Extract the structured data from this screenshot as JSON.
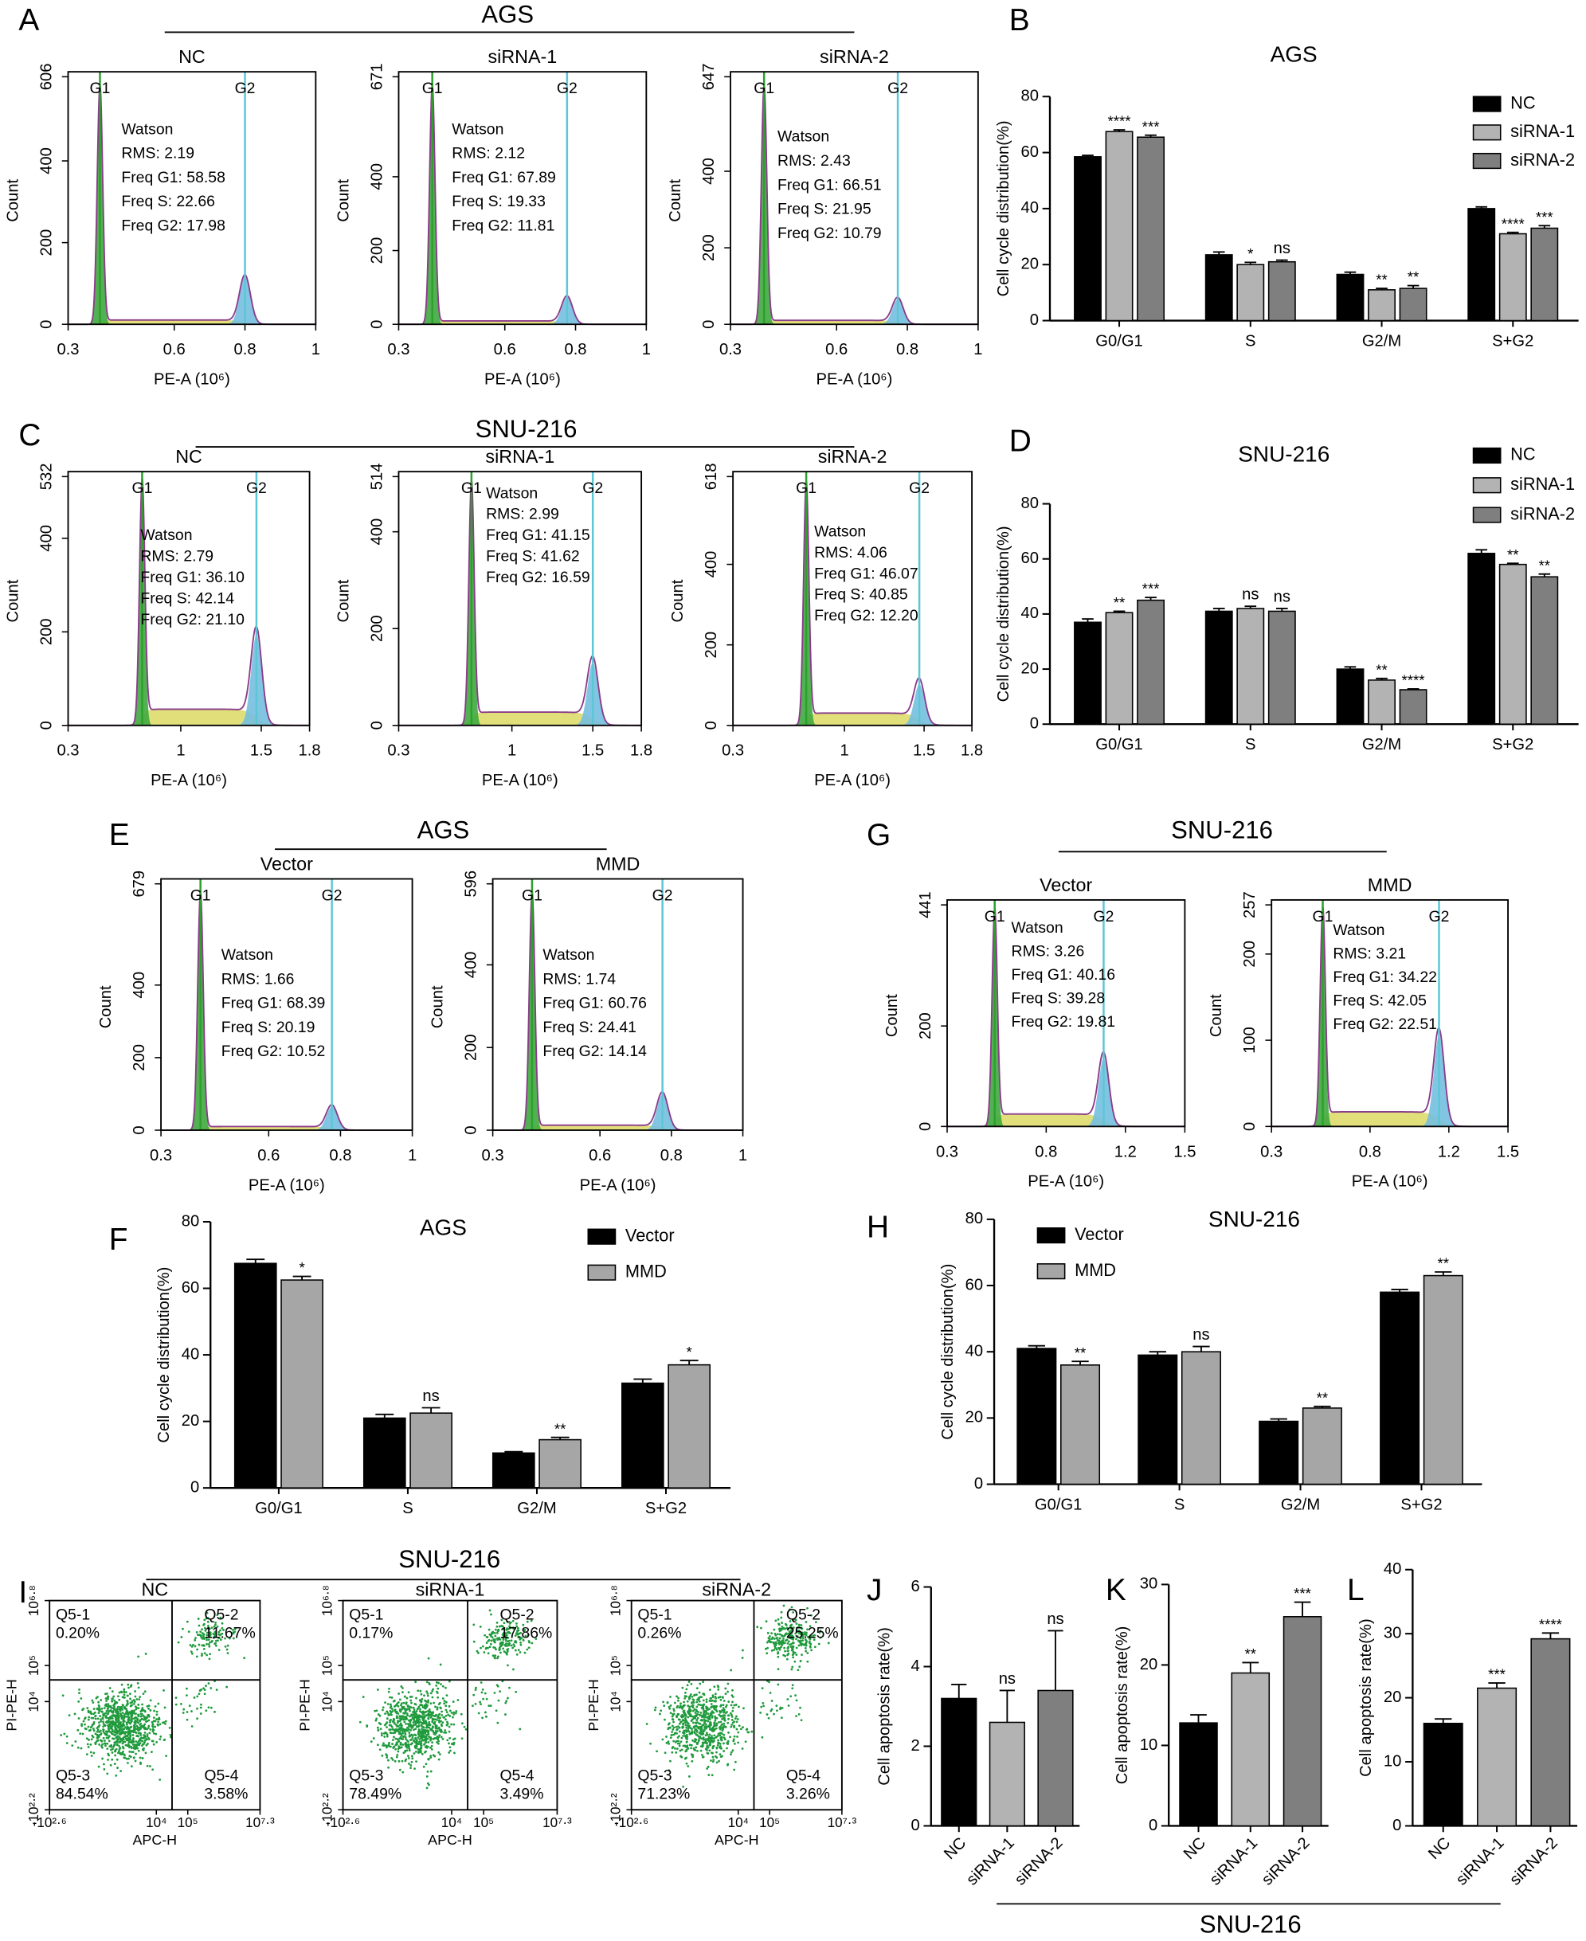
{
  "panel_letters": [
    "A",
    "B",
    "C",
    "D",
    "E",
    "F",
    "G",
    "H",
    "I",
    "J",
    "K",
    "L"
  ],
  "headings": [
    "AGS",
    "SNU-216",
    "AGS",
    "SNU-216",
    "SNU-216",
    "SNU-216"
  ],
  "chart_data": [
    {
      "type": "flow",
      "title": "NC",
      "xlabel": "PE-A (10⁶)",
      "ylabel": "Count",
      "xlim": [
        0.3,
        1
      ],
      "xticks": [
        0.3,
        0.6,
        0.8,
        1
      ],
      "ylim": [
        0,
        606
      ],
      "yticks": [
        0,
        200,
        400,
        606
      ],
      "peaks": [
        {
          "label": "G1",
          "x": 0.39
        },
        {
          "label": "G2",
          "x": 0.8
        }
      ],
      "stats": [
        "Watson",
        "RMS: 2.19",
        "Freq G1: 58.58",
        "Freq S: 22.66",
        "Freq G2: 17.98"
      ]
    },
    {
      "type": "flow",
      "title": "siRNA-1",
      "xlabel": "PE-A (10⁶)",
      "ylabel": "Count",
      "xlim": [
        0.3,
        1
      ],
      "xticks": [
        0.3,
        0.6,
        0.8,
        1
      ],
      "ylim": [
        0,
        671
      ],
      "yticks": [
        0,
        200,
        400,
        671
      ],
      "peaks": [
        {
          "label": "G1",
          "x": 0.395
        },
        {
          "label": "G2",
          "x": 0.776
        }
      ],
      "stats": [
        "Watson",
        "RMS: 2.12",
        "Freq G1: 67.89",
        "Freq S: 19.33",
        "Freq G2: 11.81"
      ]
    },
    {
      "type": "flow",
      "title": "siRNA-2",
      "xlabel": "PE-A (10⁶)",
      "ylabel": "Count",
      "xlim": [
        0.3,
        1
      ],
      "xticks": [
        0.3,
        0.6,
        0.8,
        1
      ],
      "ylim": [
        0,
        647
      ],
      "yticks": [
        0,
        200,
        400,
        647
      ],
      "peaks": [
        {
          "label": "G1",
          "x": 0.395
        },
        {
          "label": "G2",
          "x": 0.773
        }
      ],
      "stats": [
        "Watson",
        "RMS: 2.43",
        "Freq G1: 66.51",
        "Freq S: 21.95",
        "Freq G2: 10.79"
      ]
    },
    {
      "type": "bar",
      "title": "AGS",
      "ylabel": "Cell cycle distribution(%)",
      "categories": [
        "G0/G1",
        "S",
        "G2/M",
        "S+G2"
      ],
      "ylim": [
        0,
        80
      ],
      "yticks": [
        0,
        20,
        40,
        60,
        80
      ],
      "legend": "upper right",
      "series": [
        {
          "name": "NC",
          "color": "#000000",
          "values": [
            58.5,
            23.5,
            16.5,
            40
          ],
          "errors": [
            0.5,
            1,
            0.8,
            0.6
          ]
        },
        {
          "name": "siRNA-1",
          "color": "#b3b3b3",
          "values": [
            67.5,
            20,
            11,
            31
          ],
          "errors": [
            0.6,
            0.8,
            0.5,
            0.5
          ],
          "stars": [
            "****",
            "*",
            "**",
            "****"
          ]
        },
        {
          "name": "siRNA-2",
          "color": "#7f7f7f",
          "values": [
            65.5,
            21,
            11.5,
            33
          ],
          "errors": [
            0.7,
            0.6,
            1,
            0.9
          ],
          "stars": [
            "***",
            "ns",
            "**",
            "***"
          ]
        }
      ]
    },
    {
      "type": "flow",
      "title": "NC",
      "xlabel": "PE-A (10⁶)",
      "ylabel": "Count",
      "xlim": [
        0.3,
        1.8
      ],
      "xticks": [
        0.3,
        1,
        1.5,
        1.8
      ],
      "ylim": [
        0,
        532
      ],
      "yticks": [
        0,
        200,
        400,
        532
      ],
      "peaks": [
        {
          "label": "G1",
          "x": 0.76
        },
        {
          "label": "G2",
          "x": 1.47
        }
      ],
      "stats": [
        "Watson",
        "RMS: 2.79",
        "Freq G1: 36.10",
        "Freq S: 42.14",
        "Freq G2: 21.10"
      ]
    },
    {
      "type": "flow",
      "title": "siRNA-1",
      "xlabel": "PE-A (10⁶)",
      "ylabel": "Count",
      "xlim": [
        0.3,
        1.8
      ],
      "xticks": [
        0.3,
        1,
        1.5,
        1.8
      ],
      "ylim": [
        0,
        514
      ],
      "yticks": [
        0,
        200,
        400,
        514
      ],
      "peaks": [
        {
          "label": "G1",
          "x": 0.75
        },
        {
          "label": "G2",
          "x": 1.5
        }
      ],
      "stats": [
        "Watson",
        "RMS: 2.99",
        "Freq G1: 41.15",
        "Freq S: 41.62",
        "Freq G2: 16.59"
      ]
    },
    {
      "type": "flow",
      "title": "siRNA-2",
      "xlabel": "PE-A (10⁶)",
      "ylabel": "Count",
      "xlim": [
        0.3,
        1.8
      ],
      "xticks": [
        0.3,
        1,
        1.5,
        1.8
      ],
      "ylim": [
        0,
        618
      ],
      "yticks": [
        0,
        200,
        400,
        618
      ],
      "peaks": [
        {
          "label": "G1",
          "x": 0.76
        },
        {
          "label": "G2",
          "x": 1.47
        }
      ],
      "stats": [
        "Watson",
        "RMS: 4.06",
        "Freq G1: 46.07",
        "Freq S: 40.85",
        "Freq G2: 12.20"
      ]
    },
    {
      "type": "bar",
      "title": "SNU-216",
      "ylabel": "Cell cycle distribution(%)",
      "categories": [
        "G0/G1",
        "S",
        "G2/M",
        "S+G2"
      ],
      "ylim": [
        0,
        80
      ],
      "yticks": [
        0,
        20,
        40,
        60,
        80
      ],
      "legend": "upper right",
      "series": [
        {
          "name": "NC",
          "color": "#000000",
          "values": [
            37,
            41,
            20,
            62
          ],
          "errors": [
            1.2,
            1,
            0.8,
            1.3
          ]
        },
        {
          "name": "siRNA-1",
          "color": "#b3b3b3",
          "values": [
            40.5,
            42,
            16,
            58
          ],
          "errors": [
            0.5,
            0.8,
            0.6,
            0.4
          ],
          "stars": [
            "**",
            "ns",
            "**",
            "**"
          ]
        },
        {
          "name": "siRNA-2",
          "color": "#7f7f7f",
          "values": [
            45,
            41,
            12.5,
            53.5
          ],
          "errors": [
            1,
            1,
            0.3,
            1
          ],
          "stars": [
            "***",
            "ns",
            "****",
            "**"
          ]
        }
      ]
    },
    {
      "type": "flow",
      "title": "Vector",
      "xlabel": "PE-A (10⁶)",
      "ylabel": "Count",
      "xlim": [
        0.3,
        1
      ],
      "xticks": [
        0.3,
        0.6,
        0.8,
        1
      ],
      "ylim": [
        0,
        679
      ],
      "yticks": [
        0,
        200,
        400,
        679
      ],
      "peaks": [
        {
          "label": "G1",
          "x": 0.41
        },
        {
          "label": "G2",
          "x": 0.776
        }
      ],
      "stats": [
        "Watson",
        "RMS: 1.66",
        "Freq G1: 68.39",
        "Freq S: 20.19",
        "Freq G2: 10.52"
      ]
    },
    {
      "type": "flow",
      "title": "MMD",
      "xlabel": "PE-A (10⁶)",
      "ylabel": "Count",
      "xlim": [
        0.3,
        1
      ],
      "xticks": [
        0.3,
        0.6,
        0.8,
        1
      ],
      "ylim": [
        0,
        596
      ],
      "yticks": [
        0,
        200,
        400,
        596
      ],
      "peaks": [
        {
          "label": "G1",
          "x": 0.41
        },
        {
          "label": "G2",
          "x": 0.775
        }
      ],
      "stats": [
        "Watson",
        "RMS: 1.74",
        "Freq G1: 60.76",
        "Freq S: 24.41",
        "Freq G2: 14.14"
      ]
    },
    {
      "type": "flow",
      "title": "Vector",
      "xlabel": "PE-A (10⁶)",
      "ylabel": "Count",
      "xlim": [
        0.3,
        1.5
      ],
      "xticks": [
        0.3,
        0.8,
        1.2,
        1.5
      ],
      "ylim": [
        0,
        441
      ],
      "yticks": [
        0,
        200,
        441
      ],
      "peaks": [
        {
          "label": "G1",
          "x": 0.54
        },
        {
          "label": "G2",
          "x": 1.09
        }
      ],
      "stats": [
        "Watson",
        "RMS: 3.26",
        "Freq G1: 40.16",
        "Freq S: 39.28",
        "Freq G2: 19.81"
      ]
    },
    {
      "type": "flow",
      "title": "MMD",
      "xlabel": "PE-A (10⁶)",
      "ylabel": "Count",
      "xlim": [
        0.3,
        1.5
      ],
      "xticks": [
        0.3,
        0.8,
        1.2,
        1.5
      ],
      "ylim": [
        0,
        257
      ],
      "yticks": [
        0,
        100,
        200,
        257
      ],
      "peaks": [
        {
          "label": "G1",
          "x": 0.56
        },
        {
          "label": "G2",
          "x": 1.15
        }
      ],
      "stats": [
        "Watson",
        "RMS: 3.21",
        "Freq G1: 34.22",
        "Freq S: 42.05",
        "Freq G2: 22.51"
      ]
    },
    {
      "type": "bar",
      "title": "AGS",
      "ylabel": "Cell cycle distribution(%)",
      "categories": [
        "G0/G1",
        "S",
        "G2/M",
        "S+G2"
      ],
      "ylim": [
        0,
        80
      ],
      "yticks": [
        0,
        20,
        40,
        60,
        80
      ],
      "legend": "upper center",
      "series": [
        {
          "name": "Vector",
          "color": "#000000",
          "values": [
            67.5,
            21,
            10.5,
            31.5
          ],
          "errors": [
            1.2,
            1.1,
            0.4,
            1.2
          ]
        },
        {
          "name": "MMD",
          "color": "#a6a6a6",
          "values": [
            62.5,
            22.5,
            14.5,
            37
          ],
          "errors": [
            1.1,
            1.6,
            0.7,
            1.3
          ],
          "stars": [
            "*",
            "ns",
            "**",
            "*"
          ]
        }
      ]
    },
    {
      "type": "bar",
      "title": "SNU-216",
      "ylabel": "Cell cycle distribution(%)",
      "categories": [
        "G0/G1",
        "S",
        "G2/M",
        "S+G2"
      ],
      "ylim": [
        0,
        80
      ],
      "yticks": [
        0,
        20,
        40,
        60,
        80
      ],
      "legend": "upper center",
      "series": [
        {
          "name": "Vector",
          "color": "#000000",
          "values": [
            41,
            39,
            19,
            58
          ],
          "errors": [
            0.8,
            1,
            0.7,
            0.8
          ]
        },
        {
          "name": "MMD",
          "color": "#a6a6a6",
          "values": [
            36,
            40,
            23,
            63
          ],
          "errors": [
            1.1,
            1.6,
            0.5,
            1.1
          ],
          "stars": [
            "**",
            "ns",
            "**",
            "**"
          ]
        }
      ]
    },
    {
      "type": "quadrant",
      "title": "NC",
      "xlabel": "APC-H",
      "ylabel": "PI-PE-H",
      "scale": "biexponential",
      "color": "#1f9a3c",
      "xlim": [
        -2.6,
        7.3
      ],
      "xticks": [
        {
          "value": -2.6,
          "label": "-10²·⁶"
        },
        {
          "value": 4,
          "label": "10⁴"
        },
        {
          "value": 5,
          "label": "10⁵"
        },
        {
          "value": 7.3,
          "label": "10⁷·³"
        }
      ],
      "ylim": [
        -2.2,
        6.8
      ],
      "yticks": [
        {
          "value": -2.2,
          "label": "-10²·²"
        },
        {
          "value": 4,
          "label": "10⁴"
        },
        {
          "value": 5,
          "label": "10⁵"
        },
        {
          "value": 6.8,
          "label": "10⁶·⁸"
        }
      ],
      "xgate": 4.5,
      "ygate": 4.6,
      "quadrants": [
        "Q5-1",
        "Q5-2",
        "Q5-3",
        "Q5-4"
      ],
      "values": [
        0.2,
        11.67,
        84.54,
        3.58
      ],
      "value_labels": [
        "0.20%",
        "11.67%",
        "84.54%",
        "3.58%"
      ]
    },
    {
      "type": "quadrant",
      "title": "siRNA-1",
      "xlabel": "APC-H",
      "ylabel": "PI-PE-H",
      "scale": "biexponential",
      "color": "#1f9a3c",
      "xlim": [
        -2.6,
        7.3
      ],
      "xticks": [
        {
          "value": -2.6,
          "label": "-10²·⁶"
        },
        {
          "value": 4,
          "label": "10⁴"
        },
        {
          "value": 5,
          "label": "10⁵"
        },
        {
          "value": 7.3,
          "label": "10⁷·³"
        }
      ],
      "ylim": [
        -2.2,
        6.8
      ],
      "yticks": [
        {
          "value": -2.2,
          "label": "-10²·²"
        },
        {
          "value": 4,
          "label": "10⁴"
        },
        {
          "value": 5,
          "label": "10⁵"
        },
        {
          "value": 6.8,
          "label": "10⁶·⁸"
        }
      ],
      "xgate": 4.5,
      "ygate": 4.6,
      "quadrants": [
        "Q5-1",
        "Q5-2",
        "Q5-3",
        "Q5-4"
      ],
      "values": [
        0.17,
        17.86,
        78.49,
        3.49
      ],
      "value_labels": [
        "0.17%",
        "17.86%",
        "78.49%",
        "3.49%"
      ]
    },
    {
      "type": "quadrant",
      "title": "siRNA-2",
      "xlabel": "APC-H",
      "ylabel": "PI-PE-H",
      "scale": "biexponential",
      "color": "#1f9a3c",
      "xlim": [
        -2.6,
        7.3
      ],
      "xticks": [
        {
          "value": -2.6,
          "label": "-10²·⁶"
        },
        {
          "value": 4,
          "label": "10⁴"
        },
        {
          "value": 5,
          "label": "10⁵"
        },
        {
          "value": 7.3,
          "label": "10⁷·³"
        }
      ],
      "ylim": [
        -2.2,
        6.8
      ],
      "yticks": [
        {
          "value": -2.2,
          "label": "-10²·²"
        },
        {
          "value": 4,
          "label": "10⁴"
        },
        {
          "value": 5,
          "label": "10⁵"
        },
        {
          "value": 6.8,
          "label": "10⁶·⁸"
        }
      ],
      "xgate": 4.5,
      "ygate": 4.6,
      "quadrants": [
        "Q5-1",
        "Q5-2",
        "Q5-3",
        "Q5-4"
      ],
      "values": [
        0.26,
        25.25,
        71.23,
        3.26
      ],
      "value_labels": [
        "0.26%",
        "25.25%",
        "71.23%",
        "3.26%"
      ]
    },
    {
      "type": "bar",
      "ylabel": "Cell apoptosis rate(%)",
      "categories": [
        "NC",
        "siRNA-1",
        "siRNA-2"
      ],
      "ylim": [
        0,
        6
      ],
      "yticks": [
        0,
        2,
        4,
        6
      ],
      "colors": [
        "#000000",
        "#b3b3b3",
        "#7f7f7f"
      ],
      "values": [
        3.2,
        2.6,
        3.4
      ],
      "errors": [
        0.35,
        0.8,
        1.5
      ],
      "stars": [
        null,
        "ns",
        "ns"
      ]
    },
    {
      "type": "bar",
      "ylabel": "Cell apoptosis rate(%)",
      "categories": [
        "NC",
        "siRNA-1",
        "siRNA-2"
      ],
      "ylim": [
        0,
        30
      ],
      "yticks": [
        0,
        10,
        20,
        30
      ],
      "colors": [
        "#000000",
        "#b3b3b3",
        "#7f7f7f"
      ],
      "values": [
        12.8,
        19,
        26
      ],
      "errors": [
        1,
        1.3,
        1.8
      ],
      "stars": [
        null,
        "**",
        "***"
      ]
    },
    {
      "type": "bar",
      "ylabel": "Cell apoptosis rate(%)",
      "categories": [
        "NC",
        "siRNA-1",
        "siRNA-2"
      ],
      "ylim": [
        0,
        40
      ],
      "yticks": [
        0,
        10,
        20,
        30,
        40
      ],
      "colors": [
        "#000000",
        "#b3b3b3",
        "#7f7f7f"
      ],
      "values": [
        16,
        21.5,
        29.2
      ],
      "errors": [
        0.7,
        0.8,
        0.9
      ],
      "stars": [
        null,
        "***",
        "****"
      ]
    }
  ]
}
